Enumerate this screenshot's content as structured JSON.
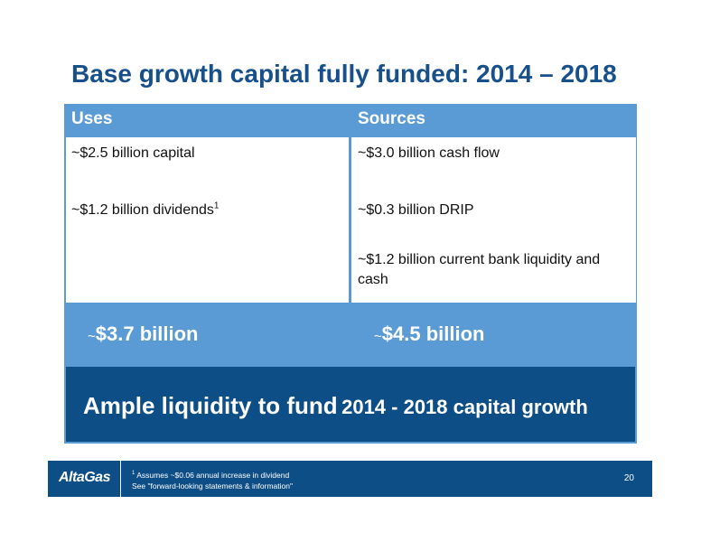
{
  "slide": {
    "title": "Base growth capital fully funded: 2014 – 2018"
  },
  "uses": {
    "header": "Uses",
    "items": [
      {
        "text": "~$2.5 billion capital",
        "sup": ""
      },
      {
        "text": "~$1.2 billion dividends",
        "sup": "1"
      }
    ],
    "total_tilde": "~",
    "total": "$3.7 billion"
  },
  "sources": {
    "header": "Sources",
    "items": [
      {
        "text": "~$3.0 billion cash flow"
      },
      {
        "text": "~$0.3 billion DRIP"
      },
      {
        "text": "~$1.2 billion current bank liquidity and cash"
      }
    ],
    "total_tilde": "~",
    "total": "$4.5 billion"
  },
  "banner": {
    "part1": "Ample liquidity to fund",
    "part2": "2014 - 2018 capital growth"
  },
  "footer": {
    "logo": "AltaGas",
    "footnote_mark": "1",
    "footnote_line1": "Assumes ~$0.06 annual increase in dividend",
    "footnote_line2": "See \"forward-looking statements & information\"",
    "page_number": "20"
  },
  "colors": {
    "title": "#17508a",
    "panel": "#5b9bd5",
    "banner": "#0d4e86"
  }
}
